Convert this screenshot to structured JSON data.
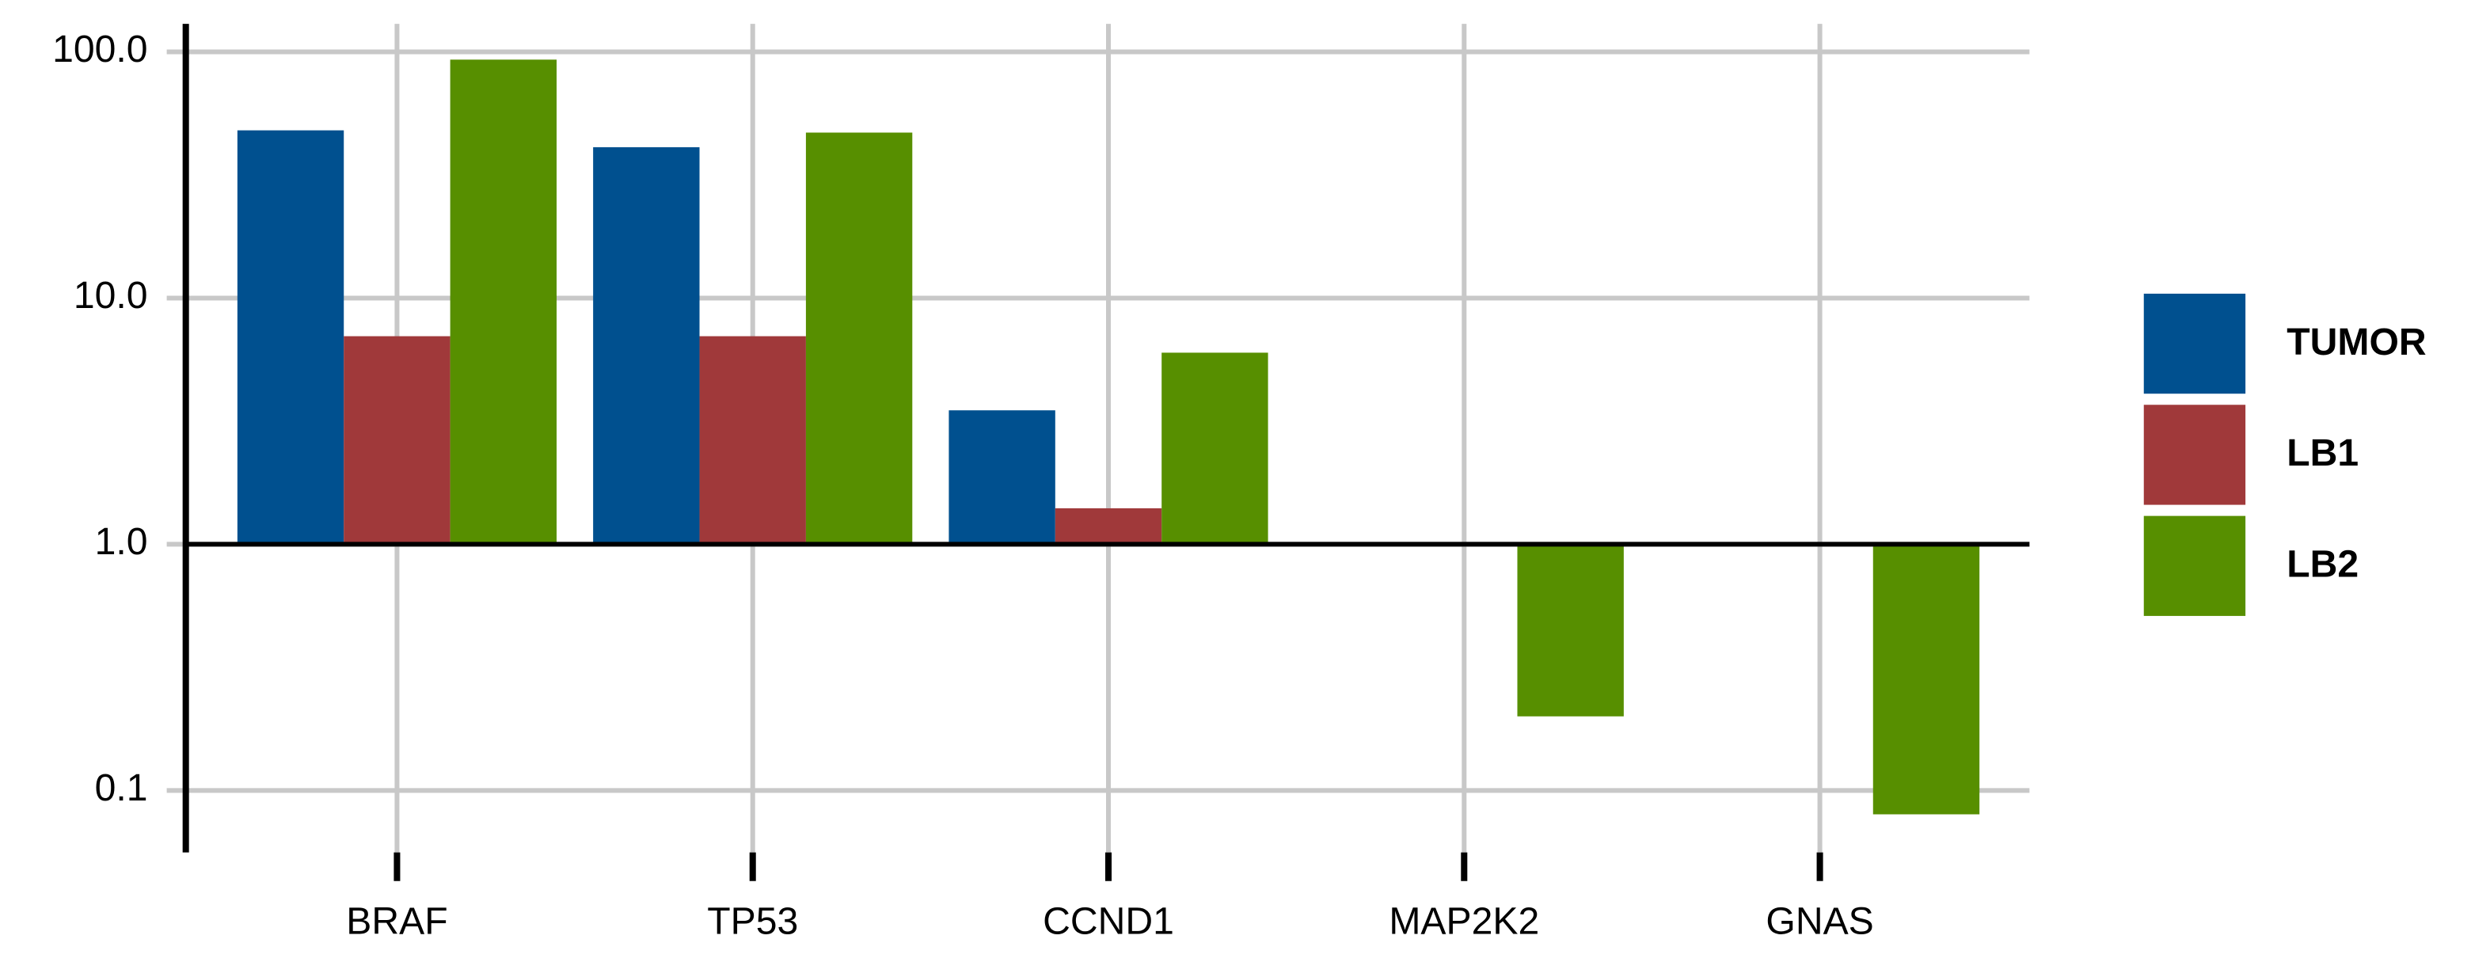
{
  "chart_data": {
    "type": "bar",
    "categories": [
      "BRAF",
      "TP53",
      "CCND1",
      "MAP2K2",
      "GNAS"
    ],
    "series": [
      {
        "name": "TUMOR",
        "color": "#00508f",
        "values": [
          48,
          41,
          3.5,
          null,
          null
        ]
      },
      {
        "name": "LB1",
        "color": "#a0393a",
        "values": [
          7,
          7,
          1.4,
          null,
          null
        ]
      },
      {
        "name": "LB2",
        "color": "#578f00",
        "values": [
          93,
          47,
          6,
          0.2,
          0.08
        ]
      }
    ],
    "log_scale": true,
    "ylim": [
      0.056,
      130
    ],
    "yticks": [
      {
        "value": 100,
        "label": "100.0"
      },
      {
        "value": 10,
        "label": "10.0"
      },
      {
        "value": 1,
        "label": "1.0"
      },
      0.1
    ],
    "grid": true,
    "legend": "right"
  }
}
